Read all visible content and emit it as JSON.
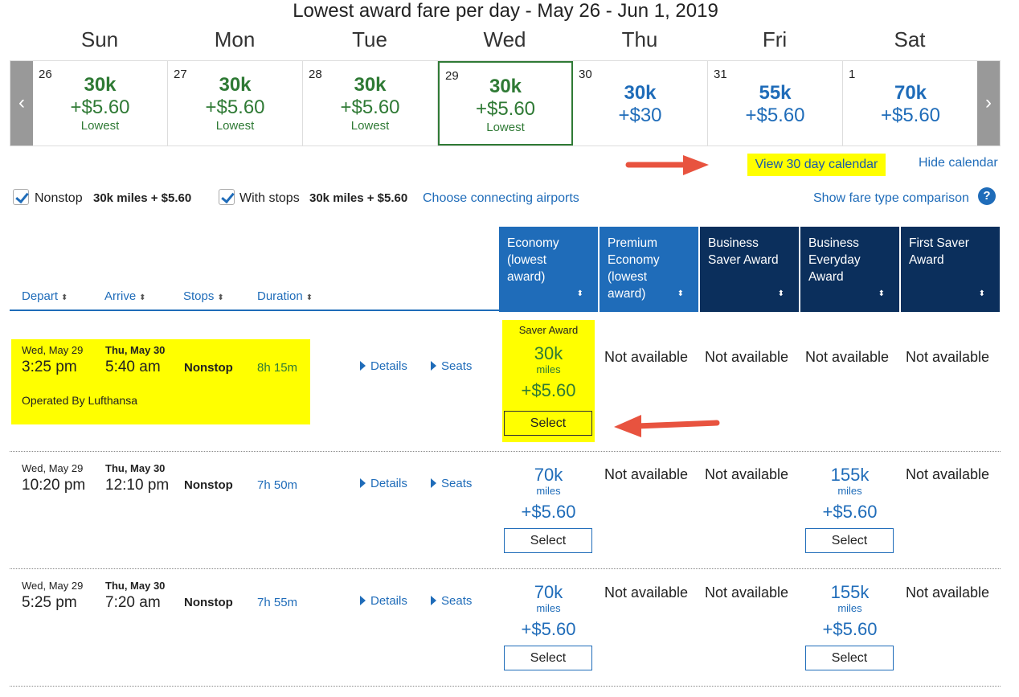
{
  "title": "Lowest award fare per day - May 26 - Jun 1, 2019",
  "days": [
    "Sun",
    "Mon",
    "Tue",
    "Wed",
    "Thu",
    "Fri",
    "Sat"
  ],
  "calendar": [
    {
      "date": "26",
      "miles": "30k",
      "tax": "+$5.60",
      "tag": "Lowest"
    },
    {
      "date": "27",
      "miles": "30k",
      "tax": "+$5.60",
      "tag": "Lowest"
    },
    {
      "date": "28",
      "miles": "30k",
      "tax": "+$5.60",
      "tag": "Lowest"
    },
    {
      "date": "29",
      "miles": "30k",
      "tax": "+$5.60",
      "tag": "Lowest"
    },
    {
      "date": "30",
      "miles": "30k",
      "tax": "+$30",
      "tag": ""
    },
    {
      "date": "31",
      "miles": "55k",
      "tax": "+$5.60",
      "tag": ""
    },
    {
      "date": "1",
      "miles": "70k",
      "tax": "+$5.60",
      "tag": ""
    }
  ],
  "nav": {
    "prev": "‹",
    "next": "›"
  },
  "links": {
    "view30": "View 30 day calendar",
    "hide": "Hide calendar",
    "choose": "Choose connecting airports",
    "compare": "Show fare type comparison",
    "help": "?"
  },
  "filters": {
    "nonstop_label": "Nonstop",
    "nonstop_price": "30k miles + $5.60",
    "stops_label": "With stops",
    "stops_price": "30k miles + $5.60"
  },
  "columns": {
    "depart": "Depart",
    "arrive": "Arrive",
    "stops": "Stops",
    "duration": "Duration"
  },
  "fare_headers": [
    {
      "lines": [
        "Economy",
        "(lowest",
        "award)"
      ]
    },
    {
      "lines": [
        "Premium",
        "Economy",
        "(lowest",
        "award)"
      ]
    },
    {
      "lines": [
        "Business",
        "Saver Award"
      ]
    },
    {
      "lines": [
        "Business",
        "Everyday",
        "Award"
      ]
    },
    {
      "lines": [
        "First Saver",
        "Award"
      ]
    }
  ],
  "sort_icon": "⬍",
  "flights": [
    {
      "dep_date": "Wed, May 29",
      "dep_time": "3:25 pm",
      "arr_date": "Thu, May 30",
      "arr_time": "5:40 am",
      "stops": "Nonstop",
      "duration": "8h 15m",
      "operator": "Operated By Lufthansa",
      "details": "Details",
      "seats": "Seats",
      "eco_cat": "Saver Award",
      "eco_miles": "30k",
      "eco_unit": "miles",
      "eco_tax": "+$5.60",
      "select": "Select",
      "na": "Not available"
    },
    {
      "dep_date": "Wed, May 29",
      "dep_time": "10:20 pm",
      "arr_date": "Thu, May 30",
      "arr_time": "12:10 pm",
      "stops": "Nonstop",
      "duration": "7h 50m",
      "details": "Details",
      "seats": "Seats",
      "eco_miles": "70k",
      "eco_unit": "miles",
      "eco_tax": "+$5.60",
      "select": "Select",
      "bus_miles": "155k",
      "bus_unit": "miles",
      "bus_tax": "+$5.60",
      "na": "Not available"
    },
    {
      "dep_date": "Wed, May 29",
      "dep_time": "5:25 pm",
      "arr_date": "Thu, May 30",
      "arr_time": "7:20 am",
      "stops": "Nonstop",
      "duration": "7h 55m",
      "details": "Details",
      "seats": "Seats",
      "eco_miles": "70k",
      "eco_unit": "miles",
      "eco_tax": "+$5.60",
      "select": "Select",
      "bus_miles": "155k",
      "bus_unit": "miles",
      "bus_tax": "+$5.60",
      "na": "Not available"
    }
  ],
  "colors": {
    "green": "#2f7a35",
    "blue": "#1f6cb9",
    "navy": "#0b2f5c",
    "highlight": "#ffff00",
    "arrow": "#e8533f"
  }
}
